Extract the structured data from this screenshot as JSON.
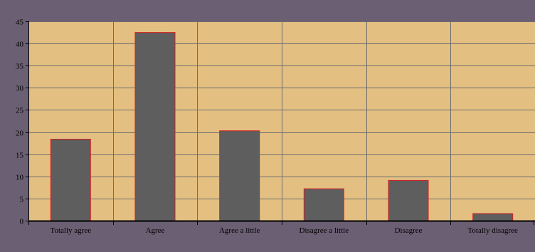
{
  "chart_data": {
    "type": "bar",
    "categories": [
      "Totally agree",
      "Agree",
      "Agree a little",
      "Disagree a little",
      "Disagree",
      "Totally disagree"
    ],
    "values": [
      18.4,
      42.5,
      20.3,
      7.2,
      9.1,
      1.6
    ],
    "ylim": [
      0,
      45
    ],
    "yticks": [
      0,
      5,
      10,
      15,
      20,
      25,
      30,
      35,
      40,
      45
    ],
    "grid": true,
    "legend": "none",
    "title": "",
    "xlabel": "",
    "ylabel": ""
  },
  "colors": {
    "frame": "#6b5f73",
    "plot_bg": "#e3bf82",
    "bar_fill": "#5e5e5e",
    "bar_stroke": "#d42020",
    "grid": "#6e6e6e",
    "axis": "#000000"
  }
}
